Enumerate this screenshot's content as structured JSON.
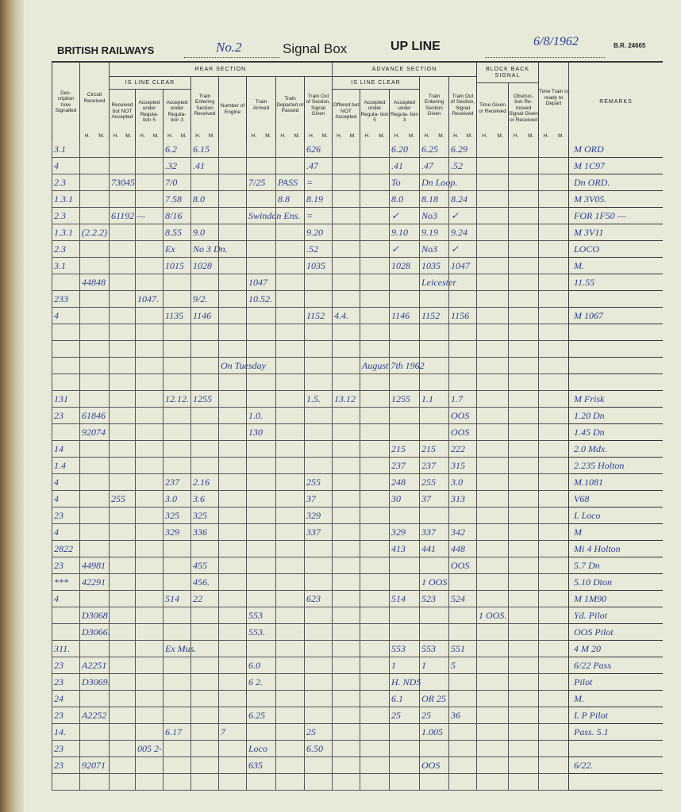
{
  "header": {
    "org": "BRITISH RAILWAYS",
    "box_name": "No.2",
    "signal_box_label": "Signal Box",
    "line": "UP LINE",
    "date": "6/8/1962",
    "form_number": "B.R. 24665"
  },
  "columns": {
    "description": "Des- cription how Signalled",
    "circuit": "Circuit Received",
    "rear_section": "REAR SECTION",
    "rear_is_line_clear": "IS LINE CLEAR",
    "rear_received_not_accepted": "Received but NOT Accepted",
    "rear_accepted_reg5": "Accepted under Regula- tion 5",
    "rear_accepted_reg3": "Accepted under Regula- tion 3",
    "rear_train_entering": "Train Entering Section Received",
    "number_of_engine": "Number of Engine",
    "train_arrived": "Train Arrived",
    "train_departed": "Train Departed or Passed",
    "rear_out_of_section": "Train Out of Section, Signal Given",
    "advance_section": "ADVANCE SECTION",
    "adv_is_line_clear": "IS LINE CLEAR",
    "adv_offered_not_accepted": "Offered but NOT Accepted",
    "adv_accepted_reg5": "Accepted under Regula- tion 5",
    "adv_accepted_reg3": "Accepted under Regula- tion 3",
    "adv_train_entering": "Train Entering Section Given",
    "adv_out_of_section": "Train Out of Section, Signal Received",
    "block_back": "BLOCK BACK SIGNAL",
    "bb_time_given": "Time Given or Received",
    "bb_obstruction": "Obstruc- tion Re- moved Signal Given or Received",
    "time_ready": "Time Train is ready to Depart",
    "remarks": "REMARKS",
    "h": "H.",
    "m": "M."
  },
  "colors": {
    "ink": "#2b3f93",
    "paper": "#e8ead9",
    "print": "#222222"
  },
  "table": {
    "rows": [
      {
        "cells": [
          "3.1",
          "",
          "",
          "",
          "6.2",
          "6.15",
          "",
          "",
          "",
          "626",
          "",
          "",
          "6.20",
          "6.25",
          "6.29",
          "",
          "",
          "",
          "M ORD"
        ]
      },
      {
        "cells": [
          "4",
          "",
          "",
          "",
          ".32",
          ".41",
          "",
          "",
          "",
          ".47",
          "",
          "",
          ".41",
          ".47",
          ".52",
          "",
          "",
          "",
          "M 1C97"
        ]
      },
      {
        "cells": [
          "2.3",
          "",
          "73045",
          "",
          "7/0",
          "",
          "",
          "7/25",
          "PASS",
          "=",
          "",
          "",
          "To",
          "Dn Loop.",
          "",
          "",
          "",
          "",
          "Dn ORD."
        ]
      },
      {
        "cells": [
          "1.3.1",
          "",
          "",
          "",
          "7.58",
          "8.0",
          "",
          "",
          "8.8",
          "8.19",
          "",
          "",
          "8.0",
          "8.18",
          "8.24",
          "",
          "",
          "",
          "M 3V05."
        ]
      },
      {
        "cells": [
          "2.3",
          "",
          "61192 —",
          "",
          "8/16",
          "",
          "",
          "Swindon Ens.",
          "",
          "=",
          "",
          "",
          "✓",
          "No3",
          "✓",
          "",
          "",
          "",
          "FOR 1F50 —"
        ]
      },
      {
        "cells": [
          "1.3.1",
          "(2.2.2)",
          "",
          "",
          "8.55",
          "9.0",
          "",
          "",
          "",
          "9.20",
          "",
          "",
          "9.10",
          "9.19",
          "9.24",
          "",
          "",
          "",
          "M 3V11"
        ]
      },
      {
        "cells": [
          "2.3",
          "",
          "",
          "",
          "Ex",
          "No 3 Dn.",
          "",
          "",
          "",
          ".52",
          "",
          "",
          "✓",
          "No3",
          "✓",
          "",
          "",
          "",
          "LOCO"
        ]
      },
      {
        "cells": [
          "3.1",
          "",
          "",
          "",
          "1015",
          "1028",
          "",
          "",
          "",
          "1035",
          "",
          "",
          "1028",
          "1035",
          "1047",
          "",
          "",
          "",
          "M."
        ]
      },
      {
        "cells": [
          "",
          "44848",
          "",
          "",
          "",
          "",
          "",
          "1047",
          "",
          "",
          "",
          "",
          "",
          "Leicester",
          "",
          "",
          "",
          "",
          "11.55"
        ]
      },
      {
        "cells": [
          "233",
          "",
          "",
          "1047.",
          "",
          "9/2.",
          "",
          "10.52.",
          "",
          "",
          "",
          "",
          "",
          "",
          "",
          "",
          "",
          "",
          ""
        ]
      },
      {
        "cells": [
          "4",
          "",
          "",
          "",
          "1135",
          "1146",
          "",
          "",
          "",
          "1152",
          "4.4.",
          "",
          "1146",
          "1152",
          "1156",
          "",
          "",
          "",
          "M 1067"
        ]
      },
      {
        "cells": []
      },
      {
        "cells": []
      },
      {
        "cells": [
          "",
          "",
          "",
          "",
          "",
          "",
          "On Tuesday",
          "",
          "",
          "",
          "",
          "August 7th 1962",
          "",
          "",
          "",
          "",
          "",
          "",
          ""
        ]
      },
      {
        "cells": []
      },
      {
        "cells": [
          "131",
          "",
          "",
          "",
          "12.12.",
          "1255",
          "",
          "",
          "",
          "1.5.",
          "13.12",
          "",
          "1255",
          "1.1",
          "1.7",
          "",
          "",
          "",
          "M Frisk"
        ]
      },
      {
        "cells": [
          "23",
          "61846",
          "",
          "",
          "",
          "",
          "",
          "1.0.",
          "",
          "",
          "",
          "",
          "",
          "",
          "OOS",
          "",
          "",
          "",
          "1.20 Dn"
        ]
      },
      {
        "cells": [
          "",
          "92074",
          "",
          "",
          "",
          "",
          "",
          "130",
          "",
          "",
          "",
          "",
          "",
          "",
          "OOS",
          "",
          "",
          "",
          "1.45 Dn"
        ]
      },
      {
        "cells": [
          "14",
          "",
          "",
          "",
          "",
          "",
          "",
          "",
          "",
          "",
          "",
          "",
          "215",
          "215",
          "222",
          "",
          "",
          "",
          "2.0 Mdx."
        ]
      },
      {
        "cells": [
          "1.4",
          "",
          "",
          "",
          "",
          "",
          "",
          "",
          "",
          "",
          "",
          "",
          "237",
          "237",
          "315",
          "",
          "",
          "",
          "2.235 Holton"
        ]
      },
      {
        "cells": [
          "4",
          "",
          "",
          "",
          "237",
          "2.16",
          "",
          "",
          "",
          "255",
          "",
          "",
          "248",
          "255",
          "3.0",
          "",
          "",
          "",
          "M.1081"
        ]
      },
      {
        "cells": [
          "4",
          "",
          "255",
          "",
          "3.0",
          "3.6",
          "",
          "",
          "",
          "37",
          "",
          "",
          "30",
          "37",
          "313",
          "",
          "",
          "",
          "V68"
        ]
      },
      {
        "cells": [
          "23",
          "",
          "",
          "",
          "325",
          "325",
          "",
          "",
          "",
          "329",
          "",
          "",
          "",
          "",
          "",
          "",
          "",
          "",
          "L Loco"
        ]
      },
      {
        "cells": [
          "4",
          "",
          "",
          "",
          "329",
          "336",
          "",
          "",
          "",
          "337",
          "",
          "",
          "329",
          "337",
          "342",
          "",
          "",
          "",
          "M"
        ]
      },
      {
        "cells": [
          "2822",
          "",
          "",
          "",
          "",
          "",
          "",
          "",
          "",
          "",
          "",
          "",
          "413",
          "441",
          "448",
          "",
          "",
          "",
          "Mi 4 Holton"
        ]
      },
      {
        "cells": [
          "23",
          "44981",
          "",
          "",
          "",
          "455",
          "",
          "",
          "",
          "",
          "",
          "",
          "",
          "",
          "OOS",
          "",
          "",
          "",
          "5.7 Dn"
        ]
      },
      {
        "cells": [
          "***",
          "42291",
          "",
          "",
          "",
          "456.",
          "",
          "",
          "",
          "",
          "",
          "",
          "",
          "1 OOS",
          "",
          "",
          "",
          "",
          "5.10 Dton"
        ]
      },
      {
        "cells": [
          "4",
          "",
          "",
          "",
          "514",
          "22",
          "",
          "",
          "",
          "623",
          "",
          "",
          "514",
          "523",
          "524",
          "",
          "",
          "",
          "M 1M90"
        ]
      },
      {
        "cells": [
          "",
          "D3068",
          "",
          "",
          "",
          "",
          "",
          "553",
          "",
          "",
          "",
          "",
          "",
          "",
          "",
          "1 OOS.",
          "",
          "",
          "Yd. Pilot"
        ]
      },
      {
        "cells": [
          "",
          "D3066.",
          "",
          "",
          "",
          "",
          "",
          "553.",
          "",
          "",
          "",
          "",
          "",
          "",
          "",
          "",
          "",
          "",
          "OOS Pilot"
        ]
      },
      {
        "cells": [
          "311.",
          "",
          "",
          "",
          "Ex Mus.",
          "",
          "",
          "",
          "",
          "",
          "",
          "",
          "553",
          "553",
          "551",
          "",
          "",
          "",
          "4 M 20"
        ]
      },
      {
        "cells": [
          "23",
          "A2251",
          "",
          "",
          "",
          "",
          "",
          "6.0",
          "",
          "",
          "",
          "",
          "1",
          "1",
          "5",
          "",
          "",
          "",
          "6/22 Pass"
        ]
      },
      {
        "cells": [
          "23",
          "D3069.",
          "",
          "",
          "",
          "",
          "",
          "6 2.",
          "",
          "",
          "",
          "",
          "H. NDS",
          "",
          "",
          "",
          "",
          "",
          "Pilot"
        ]
      },
      {
        "cells": [
          "24",
          "",
          "",
          "",
          "",
          "",
          "",
          "",
          "",
          "",
          "",
          "",
          "6.1",
          "OR 25",
          "",
          "",
          "",
          "",
          "M."
        ]
      },
      {
        "cells": [
          "23",
          "A2252",
          "",
          "",
          "",
          "",
          "",
          "6.25",
          "",
          "",
          "",
          "",
          "25",
          "25",
          "36",
          "",
          "",
          "",
          "L P Pilot"
        ]
      },
      {
        "cells": [
          "14.",
          "",
          "",
          "",
          "6.17",
          "",
          "7",
          "",
          "",
          "25",
          "",
          "",
          "",
          "1.005",
          "",
          "",
          "",
          "",
          "Pass. 5.1"
        ]
      },
      {
        "cells": [
          "23",
          "",
          "",
          "005 2-",
          "",
          "",
          "",
          "Loco",
          "",
          "6.50",
          "",
          "",
          "",
          "",
          "",
          "",
          "",
          "",
          ""
        ]
      },
      {
        "cells": [
          "23",
          "92071",
          "",
          "",
          "",
          "",
          "",
          "635",
          "",
          "",
          "",
          "",
          "",
          "OOS",
          "",
          "",
          "",
          "",
          "6/22."
        ]
      },
      {
        "cells": []
      }
    ]
  }
}
